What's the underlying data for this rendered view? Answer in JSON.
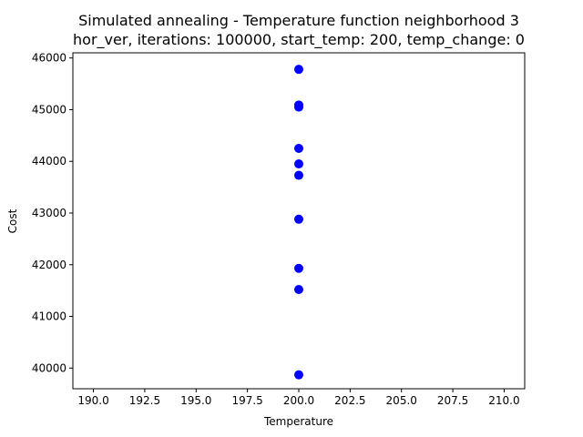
{
  "chart_data": {
    "type": "scatter",
    "title": "Simulated annealing - Temperature function neighborhood 3",
    "subtitle": "hor_ver, iterations: 100000, start_temp: 200, temp_change: 0",
    "xlabel": "Temperature",
    "ylabel": "Cost",
    "xlim": [
      189,
      211
    ],
    "ylim": [
      39600,
      46100
    ],
    "xticks": [
      190.0,
      192.5,
      195.0,
      197.5,
      200.0,
      202.5,
      205.0,
      207.5,
      210.0
    ],
    "xtick_labels": [
      "190.0",
      "192.5",
      "195.0",
      "197.5",
      "200.0",
      "202.5",
      "205.0",
      "207.5",
      "210.0"
    ],
    "yticks": [
      40000,
      41000,
      42000,
      43000,
      44000,
      45000,
      46000
    ],
    "ytick_labels": [
      "40000",
      "41000",
      "42000",
      "43000",
      "44000",
      "45000",
      "46000"
    ],
    "grid": false,
    "marker_color": "#0000ff",
    "series": [
      {
        "x": [
          200,
          200,
          200,
          200,
          200,
          200,
          200,
          200,
          200,
          200
        ],
        "y": [
          45780,
          45090,
          45050,
          44250,
          43950,
          43730,
          42880,
          41930,
          41520,
          39870
        ]
      }
    ]
  }
}
